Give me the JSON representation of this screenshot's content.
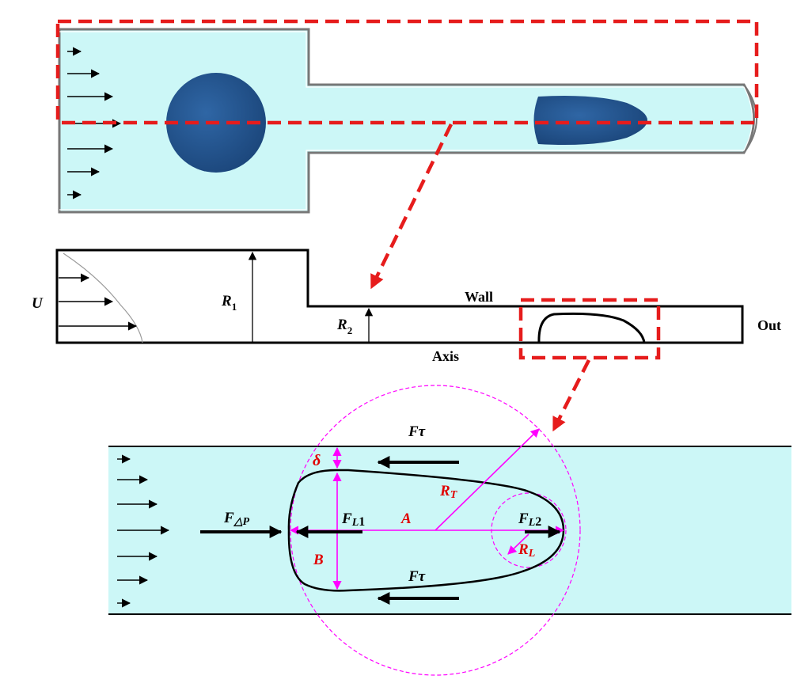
{
  "colors": {
    "fluid": "#ccf7f7",
    "cell": "#1f4f85",
    "red_dash": "#e61c1c",
    "magenta": "#ff00ff",
    "label_red": "#e00000",
    "ink": "#000000"
  },
  "panel_2d": {
    "label_U": "U",
    "label_R1_main": "R",
    "label_R1_sub": "1",
    "label_R2_main": "R",
    "label_R2_sub": "2",
    "label_wall": "Wall",
    "label_axis": "Axis",
    "label_out": "Out"
  },
  "panel_detail": {
    "F_tau_top": "Fτ",
    "F_tau_bottom": "Fτ",
    "delta": "δ",
    "R_T_main": "R",
    "R_T_sub": "T",
    "F_dP_main": "F",
    "F_dP_sub": "△P",
    "F_L1_main": "F",
    "F_L1_sub": "L",
    "F_L1_num": "1",
    "A": "A",
    "F_L2_main": "F",
    "F_L2_sub": "L",
    "F_L2_num": "2",
    "R_L_main": "R",
    "R_L_sub": "L",
    "B": "B"
  },
  "icons": [
    "flow-arrow-icon",
    "force-arrow-icon",
    "dimension-arrow-icon"
  ]
}
